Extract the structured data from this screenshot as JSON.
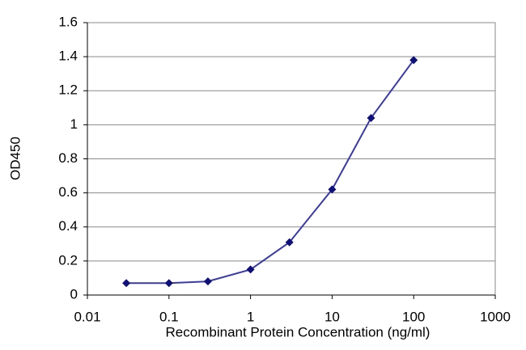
{
  "chart_data": {
    "type": "line",
    "x_label": "Recombinant Protein Concentration (ng/ml)",
    "y_label": "OD450",
    "x": [
      0.03,
      0.1,
      0.3,
      1,
      3,
      10,
      30,
      100
    ],
    "values": [
      0.07,
      0.07,
      0.08,
      0.15,
      0.31,
      0.62,
      1.04,
      1.38
    ],
    "color": "#3a3aa8",
    "marker_color": "#10107a",
    "xscale": "log",
    "xlim": [
      0.01,
      1000
    ],
    "xticks": [
      0.01,
      0.1,
      1,
      10,
      100,
      1000
    ],
    "ylim": [
      0,
      1.6
    ],
    "yticks": [
      0,
      0.2,
      0.4,
      0.6,
      0.8,
      1,
      1.2,
      1.4,
      1.6
    ],
    "grid": true
  }
}
